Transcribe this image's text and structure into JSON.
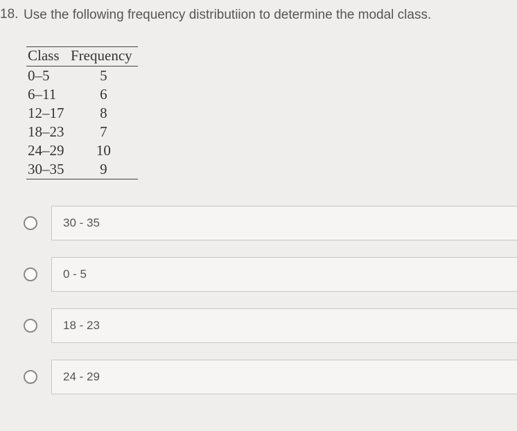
{
  "question": {
    "number": "18.",
    "text": "Use the following frequency distributiion to determine the modal class."
  },
  "freq_table": {
    "headers": {
      "class": "Class",
      "frequency": "Frequency"
    },
    "rows": [
      {
        "class": "0–5",
        "frequency": "5"
      },
      {
        "class": "6–11",
        "frequency": "6"
      },
      {
        "class": "12–17",
        "frequency": "8"
      },
      {
        "class": "18–23",
        "frequency": "7"
      },
      {
        "class": "24–29",
        "frequency": "10"
      },
      {
        "class": "30–35",
        "frequency": "9"
      }
    ]
  },
  "options": [
    {
      "label": "30 - 35"
    },
    {
      "label": "0 - 5"
    },
    {
      "label": "18 - 23"
    },
    {
      "label": "24 - 29"
    }
  ]
}
